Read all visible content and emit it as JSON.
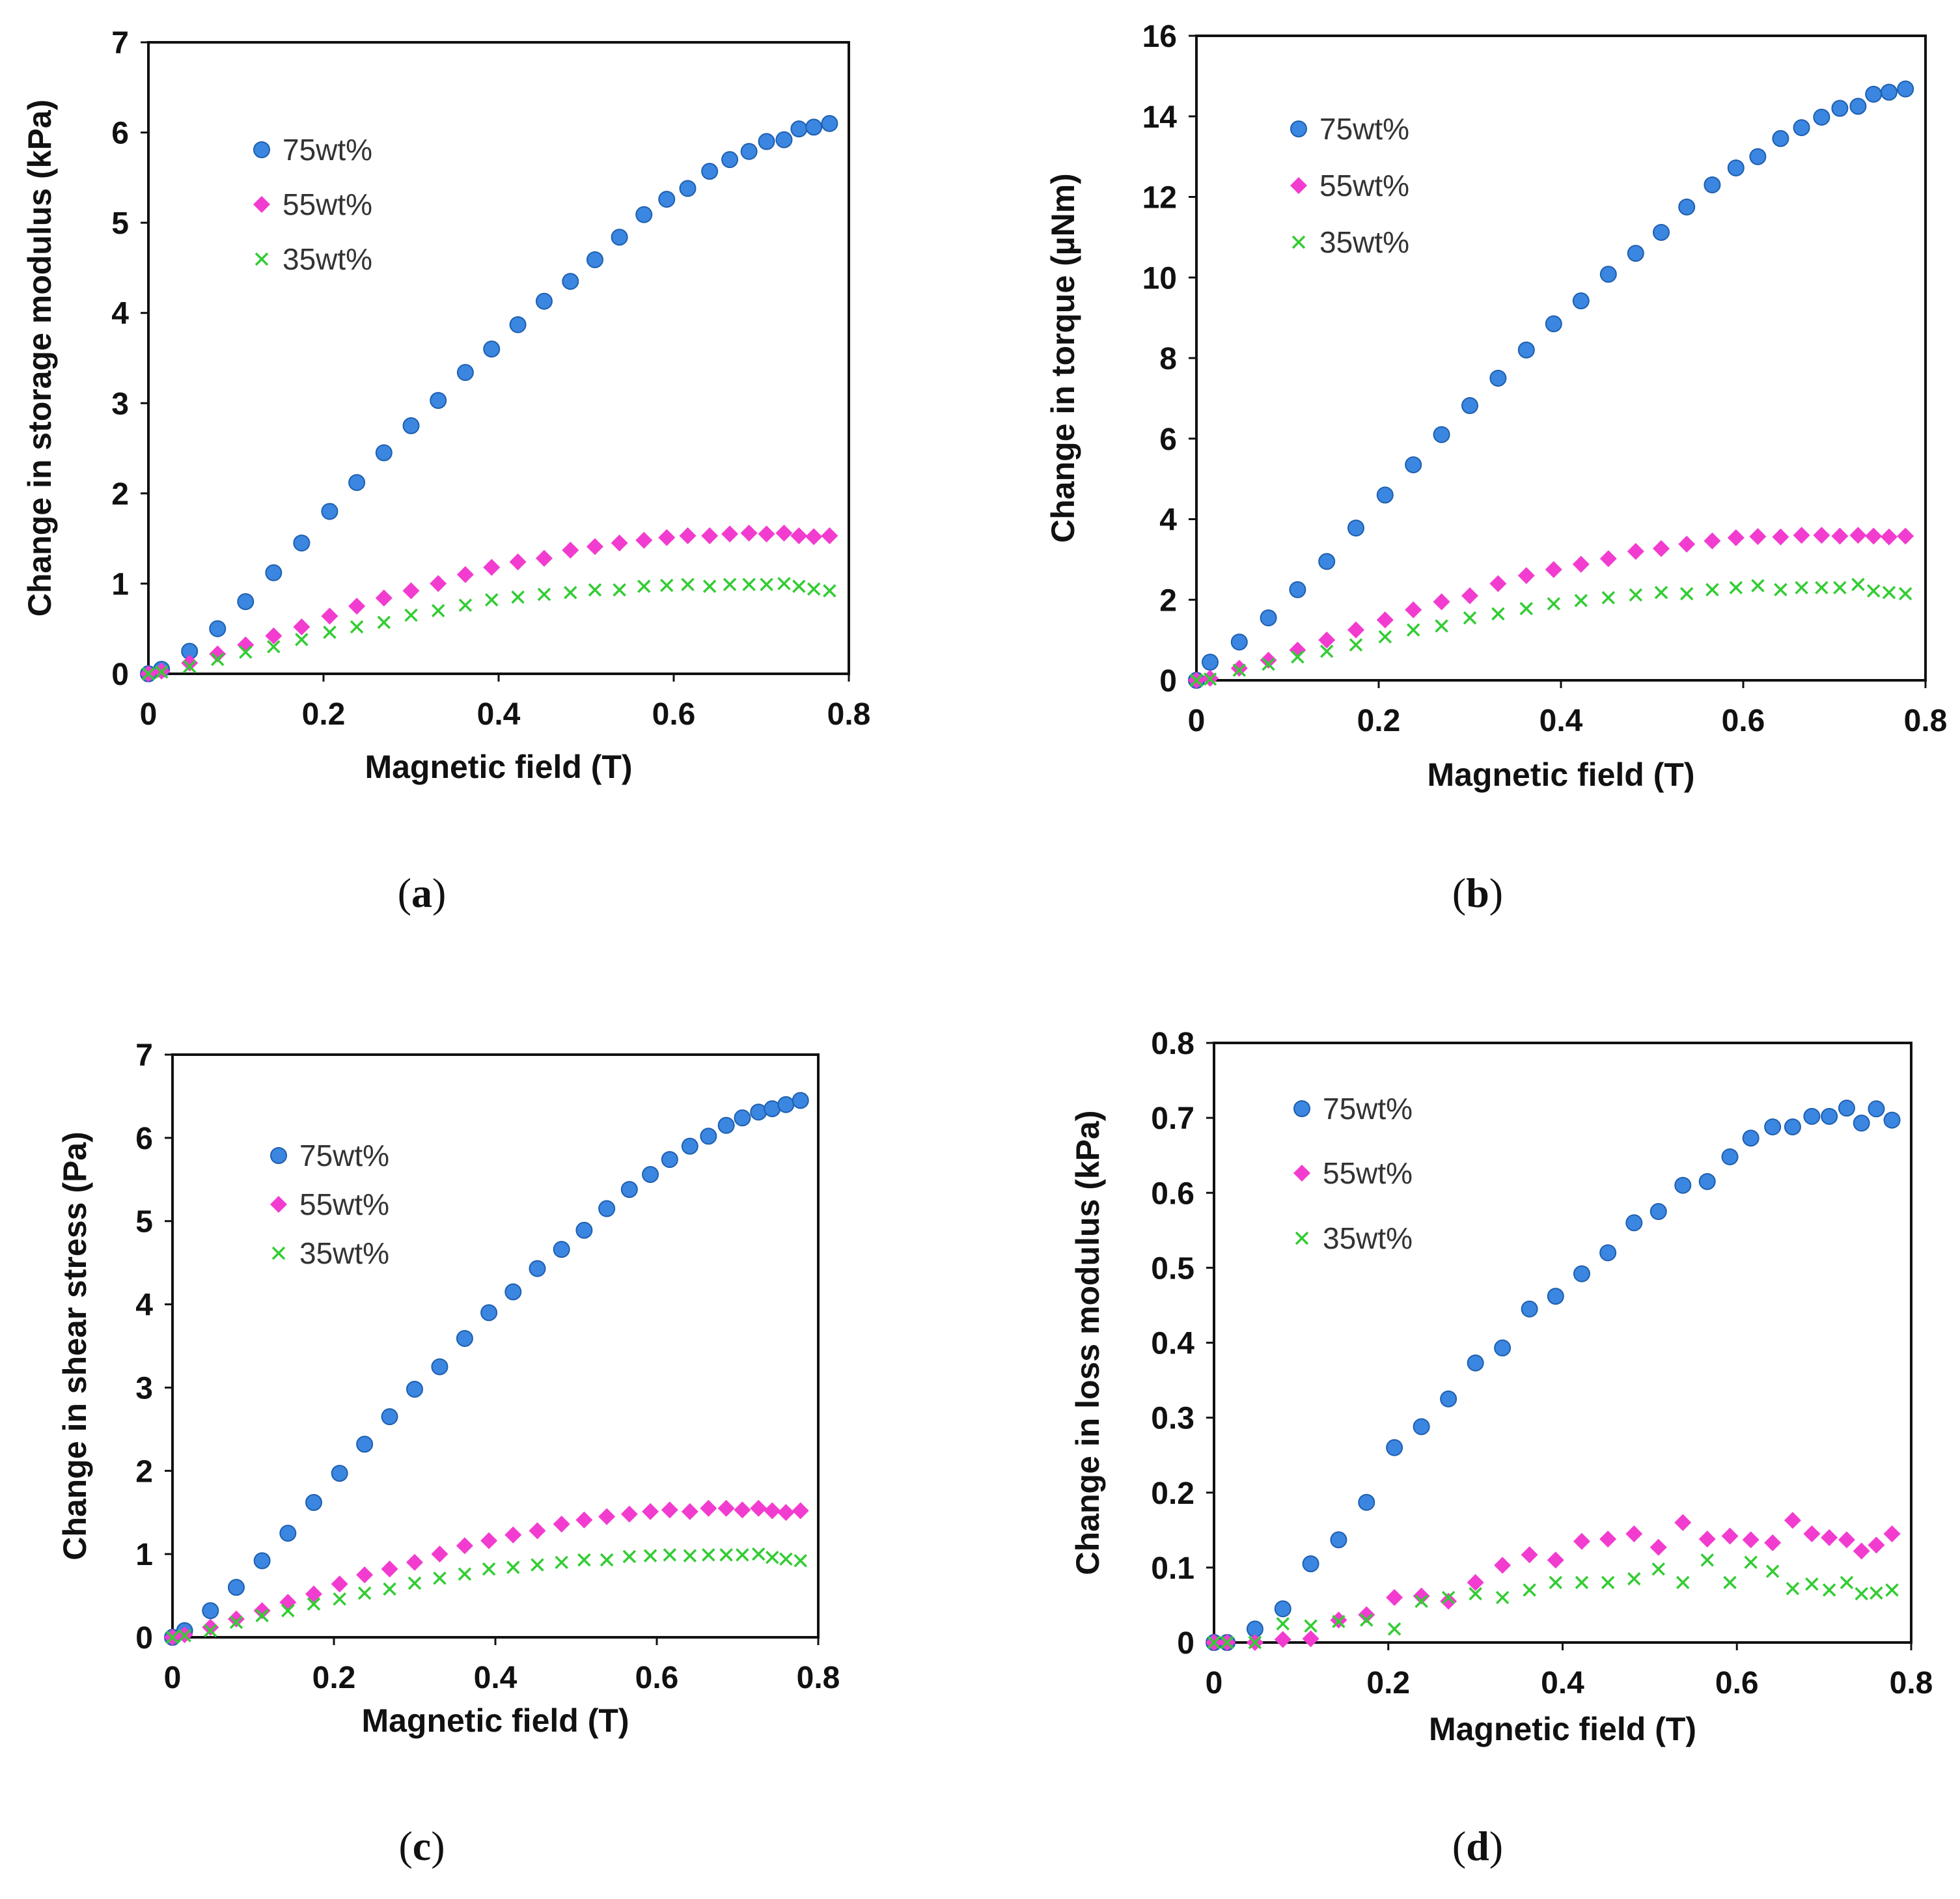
{
  "chart_data": [
    {
      "type": "scatter",
      "caption": "a",
      "xlabel": "Magnetic field (T)",
      "ylabel": "Change in storage modulus (kPa)",
      "xlim": [
        0,
        0.8
      ],
      "ylim": [
        0,
        7
      ],
      "xticks": [
        "0",
        "0.2",
        "0.4",
        "0.6",
        "0.8"
      ],
      "yticks": [
        "0",
        "1",
        "2",
        "3",
        "4",
        "5",
        "6",
        "7"
      ],
      "xtick_values": [
        0,
        0.2,
        0.4,
        0.6,
        0.8
      ],
      "ytick_values": [
        0,
        1,
        2,
        3,
        4,
        5,
        6,
        7
      ],
      "grid": false,
      "legend_position": "upper-left",
      "series": [
        {
          "name": "75wt%",
          "marker": "circle",
          "color": "#3a86e0",
          "x": [
            0,
            0.015,
            0.047,
            0.079,
            0.111,
            0.143,
            0.175,
            0.207,
            0.238,
            0.269,
            0.3,
            0.331,
            0.362,
            0.392,
            0.422,
            0.452,
            0.482,
            0.51,
            0.538,
            0.566,
            0.592,
            0.616,
            0.641,
            0.664,
            0.686,
            0.706,
            0.726,
            0.743,
            0.76,
            0.778
          ],
          "y": [
            0,
            0.05,
            0.25,
            0.5,
            0.8,
            1.12,
            1.45,
            1.8,
            2.12,
            2.45,
            2.75,
            3.03,
            3.34,
            3.6,
            3.87,
            4.13,
            4.35,
            4.59,
            4.84,
            5.09,
            5.26,
            5.38,
            5.57,
            5.7,
            5.79,
            5.9,
            5.92,
            6.04,
            6.06,
            6.1
          ]
        },
        {
          "name": "55wt%",
          "marker": "diamond",
          "color": "#f23ccf",
          "x": [
            0,
            0.015,
            0.047,
            0.079,
            0.111,
            0.143,
            0.175,
            0.207,
            0.238,
            0.269,
            0.3,
            0.331,
            0.362,
            0.392,
            0.422,
            0.452,
            0.482,
            0.51,
            0.538,
            0.566,
            0.592,
            0.616,
            0.641,
            0.664,
            0.686,
            0.706,
            0.726,
            0.743,
            0.76,
            0.778
          ],
          "y": [
            0,
            0.03,
            0.12,
            0.22,
            0.32,
            0.42,
            0.52,
            0.64,
            0.75,
            0.84,
            0.92,
            1.0,
            1.1,
            1.18,
            1.24,
            1.28,
            1.37,
            1.41,
            1.45,
            1.48,
            1.51,
            1.53,
            1.53,
            1.55,
            1.56,
            1.55,
            1.56,
            1.53,
            1.52,
            1.53
          ]
        },
        {
          "name": "35wt%",
          "marker": "x",
          "color": "#33cc33",
          "x": [
            0,
            0.015,
            0.047,
            0.079,
            0.111,
            0.143,
            0.175,
            0.207,
            0.238,
            0.269,
            0.3,
            0.331,
            0.362,
            0.392,
            0.422,
            0.452,
            0.482,
            0.51,
            0.538,
            0.566,
            0.592,
            0.616,
            0.641,
            0.664,
            0.686,
            0.706,
            0.726,
            0.743,
            0.76,
            0.778
          ],
          "y": [
            0,
            0.02,
            0.08,
            0.16,
            0.24,
            0.3,
            0.38,
            0.46,
            0.52,
            0.57,
            0.65,
            0.7,
            0.76,
            0.82,
            0.85,
            0.88,
            0.9,
            0.93,
            0.93,
            0.97,
            0.98,
            0.99,
            0.97,
            0.99,
            0.99,
            0.99,
            1.0,
            0.97,
            0.94,
            0.92
          ]
        }
      ]
    },
    {
      "type": "scatter",
      "caption": "b",
      "xlabel": "Magnetic field (T)",
      "ylabel": "Change in torque (µNm)",
      "xlim": [
        0,
        0.8
      ],
      "ylim": [
        0,
        16
      ],
      "xticks": [
        "0",
        "0.2",
        "0.4",
        "0.6",
        "0.8"
      ],
      "yticks": [
        "0",
        "2",
        "4",
        "6",
        "8",
        "10",
        "12",
        "14",
        "16"
      ],
      "xtick_values": [
        0,
        0.2,
        0.4,
        0.6,
        0.8
      ],
      "ytick_values": [
        0,
        2,
        4,
        6,
        8,
        10,
        12,
        14,
        16
      ],
      "grid": false,
      "legend_position": "upper-left",
      "series": [
        {
          "name": "75wt%",
          "marker": "circle",
          "color": "#3a86e0",
          "x": [
            0,
            0.015,
            0.047,
            0.079,
            0.111,
            0.143,
            0.175,
            0.207,
            0.238,
            0.269,
            0.3,
            0.331,
            0.362,
            0.392,
            0.422,
            0.452,
            0.482,
            0.51,
            0.538,
            0.566,
            0.592,
            0.616,
            0.641,
            0.664,
            0.686,
            0.706,
            0.726,
            0.743,
            0.76,
            0.778
          ],
          "y": [
            0,
            0.45,
            0.95,
            1.55,
            2.25,
            2.95,
            3.78,
            4.6,
            5.35,
            6.1,
            6.82,
            7.5,
            8.2,
            8.85,
            9.42,
            10.08,
            10.6,
            11.12,
            11.75,
            12.3,
            12.72,
            13.0,
            13.45,
            13.72,
            13.98,
            14.2,
            14.25,
            14.55,
            14.6,
            14.68
          ]
        },
        {
          "name": "55wt%",
          "marker": "diamond",
          "color": "#f23ccf",
          "x": [
            0,
            0.015,
            0.047,
            0.079,
            0.111,
            0.143,
            0.175,
            0.207,
            0.238,
            0.269,
            0.3,
            0.331,
            0.362,
            0.392,
            0.422,
            0.452,
            0.482,
            0.51,
            0.538,
            0.566,
            0.592,
            0.616,
            0.641,
            0.664,
            0.686,
            0.706,
            0.726,
            0.743,
            0.76,
            0.778
          ],
          "y": [
            0,
            0.05,
            0.3,
            0.5,
            0.75,
            1.0,
            1.25,
            1.5,
            1.75,
            1.95,
            2.1,
            2.4,
            2.6,
            2.75,
            2.88,
            3.02,
            3.2,
            3.27,
            3.38,
            3.46,
            3.54,
            3.57,
            3.56,
            3.6,
            3.6,
            3.58,
            3.6,
            3.58,
            3.56,
            3.58
          ]
        },
        {
          "name": "35wt%",
          "marker": "x",
          "color": "#33cc33",
          "x": [
            0,
            0.015,
            0.047,
            0.079,
            0.111,
            0.143,
            0.175,
            0.207,
            0.238,
            0.269,
            0.3,
            0.331,
            0.362,
            0.392,
            0.422,
            0.452,
            0.482,
            0.51,
            0.538,
            0.566,
            0.592,
            0.616,
            0.641,
            0.664,
            0.686,
            0.706,
            0.726,
            0.743,
            0.76,
            0.778
          ],
          "y": [
            0,
            0.03,
            0.25,
            0.4,
            0.58,
            0.72,
            0.88,
            1.08,
            1.25,
            1.35,
            1.55,
            1.65,
            1.78,
            1.9,
            1.98,
            2.05,
            2.12,
            2.18,
            2.15,
            2.25,
            2.3,
            2.35,
            2.25,
            2.3,
            2.3,
            2.3,
            2.38,
            2.22,
            2.18,
            2.15
          ]
        }
      ]
    },
    {
      "type": "scatter",
      "caption": "c",
      "xlabel": "Magnetic field (T)",
      "ylabel": "Change in shear stress (Pa)",
      "xlim": [
        0,
        0.8
      ],
      "ylim": [
        0,
        7
      ],
      "xticks": [
        "0",
        "0.2",
        "0.4",
        "0.6",
        "0.8"
      ],
      "yticks": [
        "0",
        "1",
        "2",
        "3",
        "4",
        "5",
        "6",
        "7"
      ],
      "xtick_values": [
        0,
        0.2,
        0.4,
        0.6,
        0.8
      ],
      "ytick_values": [
        0,
        1,
        2,
        3,
        4,
        5,
        6,
        7
      ],
      "grid": false,
      "legend_position": "upper-left",
      "series": [
        {
          "name": "75wt%",
          "marker": "circle",
          "color": "#3a86e0",
          "x": [
            0,
            0.015,
            0.047,
            0.079,
            0.111,
            0.143,
            0.175,
            0.207,
            0.238,
            0.269,
            0.3,
            0.331,
            0.362,
            0.392,
            0.422,
            0.452,
            0.482,
            0.51,
            0.538,
            0.566,
            0.592,
            0.616,
            0.641,
            0.664,
            0.686,
            0.706,
            0.726,
            0.743,
            0.76,
            0.778
          ],
          "y": [
            0,
            0.08,
            0.32,
            0.6,
            0.92,
            1.25,
            1.62,
            1.97,
            2.32,
            2.65,
            2.98,
            3.25,
            3.59,
            3.9,
            4.15,
            4.43,
            4.66,
            4.89,
            5.15,
            5.38,
            5.56,
            5.74,
            5.9,
            6.02,
            6.15,
            6.24,
            6.31,
            6.35,
            6.4,
            6.45
          ]
        },
        {
          "name": "55wt%",
          "marker": "diamond",
          "color": "#f23ccf",
          "x": [
            0,
            0.015,
            0.047,
            0.079,
            0.111,
            0.143,
            0.175,
            0.207,
            0.238,
            0.269,
            0.3,
            0.331,
            0.362,
            0.392,
            0.422,
            0.452,
            0.482,
            0.51,
            0.538,
            0.566,
            0.592,
            0.616,
            0.641,
            0.664,
            0.686,
            0.706,
            0.726,
            0.743,
            0.76,
            0.778
          ],
          "y": [
            0,
            0.03,
            0.12,
            0.22,
            0.32,
            0.42,
            0.52,
            0.64,
            0.75,
            0.82,
            0.9,
            1.0,
            1.1,
            1.16,
            1.23,
            1.28,
            1.36,
            1.41,
            1.45,
            1.48,
            1.51,
            1.53,
            1.51,
            1.55,
            1.55,
            1.53,
            1.55,
            1.52,
            1.5,
            1.52
          ]
        },
        {
          "name": "35wt%",
          "marker": "x",
          "color": "#33cc33",
          "x": [
            0,
            0.015,
            0.047,
            0.079,
            0.111,
            0.143,
            0.175,
            0.207,
            0.238,
            0.269,
            0.3,
            0.331,
            0.362,
            0.392,
            0.422,
            0.452,
            0.482,
            0.51,
            0.538,
            0.566,
            0.592,
            0.616,
            0.641,
            0.664,
            0.686,
            0.706,
            0.726,
            0.743,
            0.76,
            0.778
          ],
          "y": [
            0,
            0.02,
            0.08,
            0.18,
            0.26,
            0.32,
            0.4,
            0.46,
            0.53,
            0.58,
            0.65,
            0.71,
            0.76,
            0.82,
            0.84,
            0.87,
            0.9,
            0.93,
            0.93,
            0.97,
            0.98,
            0.99,
            0.98,
            0.99,
            0.99,
            0.99,
            1.0,
            0.96,
            0.94,
            0.92
          ]
        }
      ]
    },
    {
      "type": "scatter",
      "caption": "d",
      "xlabel": "Magnetic field (T)",
      "ylabel": "Change in loss modulus (kPa)",
      "xlim": [
        0,
        0.8
      ],
      "ylim": [
        0,
        0.8
      ],
      "xticks": [
        "0",
        "0.2",
        "0.4",
        "0.6",
        "0.8"
      ],
      "yticks": [
        "0",
        "0.1",
        "0.2",
        "0.3",
        "0.4",
        "0.5",
        "0.6",
        "0.7",
        "0.8"
      ],
      "xtick_values": [
        0,
        0.2,
        0.4,
        0.6,
        0.8
      ],
      "ytick_values": [
        0,
        0.1,
        0.2,
        0.3,
        0.4,
        0.5,
        0.6,
        0.7,
        0.8
      ],
      "grid": false,
      "legend_position": "upper-left",
      "series": [
        {
          "name": "75wt%",
          "marker": "circle",
          "color": "#3a86e0",
          "x": [
            0,
            0.015,
            0.047,
            0.079,
            0.111,
            0.143,
            0.175,
            0.207,
            0.238,
            0.269,
            0.3,
            0.331,
            0.362,
            0.392,
            0.422,
            0.452,
            0.482,
            0.51,
            0.538,
            0.566,
            0.592,
            0.616,
            0.641,
            0.664,
            0.686,
            0.706,
            0.726,
            0.743,
            0.76,
            0.778
          ],
          "y": [
            0,
            0.0,
            0.018,
            0.045,
            0.105,
            0.137,
            0.187,
            0.26,
            0.288,
            0.325,
            0.373,
            0.393,
            0.445,
            0.462,
            0.492,
            0.52,
            0.56,
            0.575,
            0.61,
            0.615,
            0.648,
            0.673,
            0.688,
            0.688,
            0.702,
            0.702,
            0.713,
            0.693,
            0.712,
            0.697
          ]
        },
        {
          "name": "55wt%",
          "marker": "diamond",
          "color": "#f23ccf",
          "x": [
            0,
            0.015,
            0.047,
            0.079,
            0.111,
            0.143,
            0.175,
            0.207,
            0.238,
            0.269,
            0.3,
            0.331,
            0.362,
            0.392,
            0.422,
            0.452,
            0.482,
            0.51,
            0.538,
            0.566,
            0.592,
            0.616,
            0.641,
            0.664,
            0.686,
            0.706,
            0.726,
            0.743,
            0.76,
            0.778
          ],
          "y": [
            0,
            0.0,
            0.0,
            0.004,
            0.005,
            0.03,
            0.037,
            0.06,
            0.062,
            0.055,
            0.08,
            0.103,
            0.117,
            0.11,
            0.135,
            0.138,
            0.145,
            0.127,
            0.16,
            0.138,
            0.142,
            0.137,
            0.133,
            0.163,
            0.145,
            0.14,
            0.137,
            0.122,
            0.13,
            0.145
          ]
        },
        {
          "name": "35wt%",
          "marker": "x",
          "color": "#33cc33",
          "x": [
            0,
            0.015,
            0.047,
            0.079,
            0.111,
            0.143,
            0.175,
            0.207,
            0.238,
            0.269,
            0.3,
            0.331,
            0.362,
            0.392,
            0.422,
            0.452,
            0.482,
            0.51,
            0.538,
            0.566,
            0.592,
            0.616,
            0.641,
            0.664,
            0.686,
            0.706,
            0.726,
            0.743,
            0.76,
            0.778
          ],
          "y": [
            0,
            0.0,
            0.0,
            0.025,
            0.022,
            0.028,
            0.03,
            0.018,
            0.055,
            0.06,
            0.065,
            0.06,
            0.07,
            0.08,
            0.08,
            0.08,
            0.085,
            0.098,
            0.08,
            0.11,
            0.08,
            0.107,
            0.095,
            0.072,
            0.078,
            0.07,
            0.08,
            0.065,
            0.066,
            0.07
          ]
        }
      ]
    }
  ]
}
